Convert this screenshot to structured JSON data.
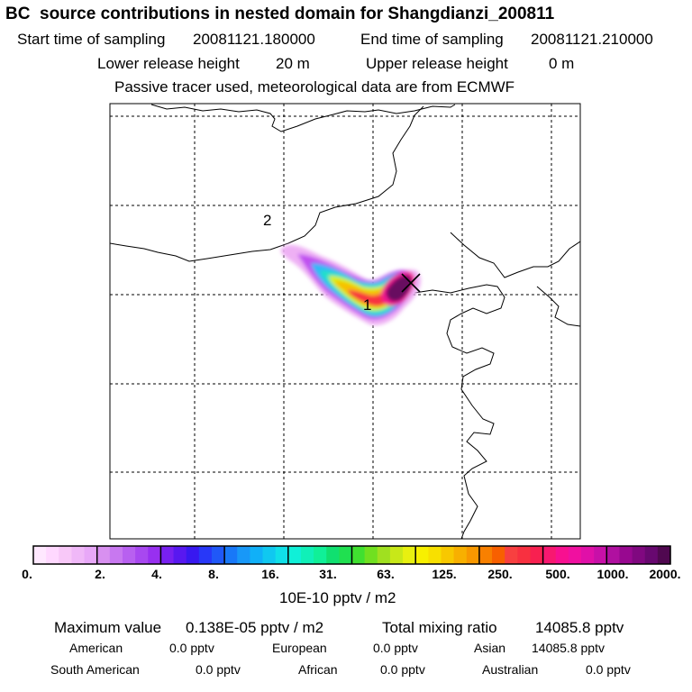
{
  "header": {
    "title": "BC  source contributions in nested domain for Shangdianzi_200811",
    "start_label": "Start time of sampling",
    "start_value": "20081121.180000",
    "end_label": "End time of sampling",
    "end_value": "20081121.210000",
    "lower_label": "Lower release height",
    "lower_value": "20 m",
    "upper_label": "Upper release height",
    "upper_value": "0 m",
    "note": "Passive tracer used, meteorological data are from ECMWF"
  },
  "map": {
    "markers": [
      {
        "label": "2"
      },
      {
        "label": "1"
      }
    ],
    "receptor_symbol": "✕",
    "plume_colors": [
      "#e090f0",
      "#c040f0",
      "#9020f0",
      "#40a0ff",
      "#00e0e0",
      "#40e080",
      "#d0f000",
      "#ffd000",
      "#ff4040",
      "#ff20a0",
      "#800060"
    ]
  },
  "colorbar": {
    "labels": [
      "0.",
      "2.",
      "4.",
      "8.",
      "16.",
      "31.",
      "63.",
      "125.",
      "250.",
      "500.",
      "1000.",
      "2000."
    ],
    "colors": [
      "#ffe8ff",
      "#ffd8ff",
      "#f8c8f8",
      "#f0b8f8",
      "#e8a8f8",
      "#d890f0",
      "#c878f0",
      "#b860f0",
      "#a848f0",
      "#9830f0",
      "#7820f0",
      "#5818f0",
      "#3818f0",
      "#2838f8",
      "#2058f8",
      "#1878f8",
      "#1898f8",
      "#10b0f8",
      "#10c8f0",
      "#10e0e8",
      "#10f0d8",
      "#10f0b8",
      "#10f098",
      "#10e070",
      "#20e050",
      "#40e030",
      "#70e020",
      "#a0e020",
      "#c8e818",
      "#e8f010",
      "#f8f000",
      "#f8e000",
      "#f8c800",
      "#f8b000",
      "#f89800",
      "#f88000",
      "#f86000",
      "#f84040",
      "#f83040",
      "#f82050",
      "#f81870",
      "#f81090",
      "#f010a0",
      "#e010a8",
      "#c810a8",
      "#b010a0",
      "#980890",
      "#800880",
      "#680870",
      "#500850"
    ],
    "unit": "10E-10 pptv / m2"
  },
  "stats": {
    "max_label": "Maximum value",
    "max_value": "0.138E-05 pptv / m2",
    "total_label": "Total mixing ratio",
    "total_value": "14085.8 pptv",
    "american_label": "American",
    "american_value": "0.0 pptv",
    "european_label": "European",
    "european_value": "0.0 pptv",
    "asian_label": "Asian",
    "asian_value": "14085.8 pptv",
    "south_american_label": "South American",
    "south_american_value": "0.0 pptv",
    "african_label": "African",
    "african_value": "0.0 pptv",
    "australian_label": "Australian",
    "australian_value": "0.0 pptv"
  }
}
